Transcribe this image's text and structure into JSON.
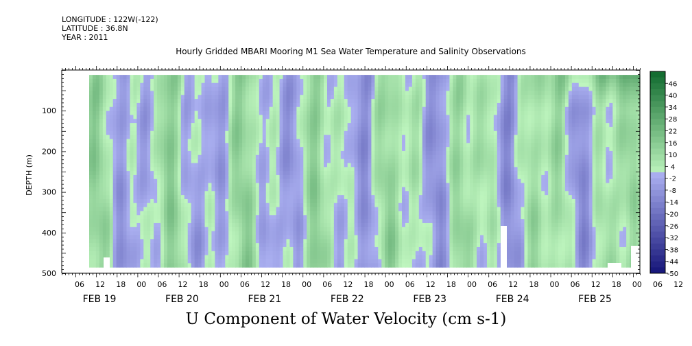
{
  "header": {
    "longitude": "LONGITUDE : 122W(-122)",
    "latitude": "LATITUDE : 36.8N",
    "year": "YEAR : 2011"
  },
  "chart_data": {
    "type": "heatmap",
    "title": "Hourly Gridded MBARI Mooring M1 Sea Water Temperature and Salinity Observations",
    "ylabel": "DEPTH (m)",
    "xlabel": "U Component of Water Velocity (cm s-1)",
    "y_ticks": [
      100,
      200,
      300,
      400,
      500
    ],
    "ylim": [
      500,
      0
    ],
    "x_hour_ticks": [
      "06",
      "12",
      "18",
      "00",
      "06",
      "12",
      "18",
      "00",
      "06",
      "12",
      "18",
      "00",
      "06",
      "12",
      "18",
      "00",
      "06",
      "12",
      "18",
      "00",
      "06",
      "12",
      "18",
      "00",
      "06",
      "12",
      "18",
      "00",
      "06",
      "12",
      "18",
      "00"
    ],
    "x_date_labels": [
      "FEB 19",
      "FEB 20",
      "FEB 21",
      "FEB 22",
      "FEB 23",
      "FEB 24",
      "FEB 25"
    ],
    "colorbar": {
      "levels": [
        46,
        40,
        34,
        28,
        22,
        16,
        10,
        4,
        -2,
        -8,
        -14,
        -20,
        -26,
        -32,
        -38,
        -44,
        -50
      ],
      "range": [
        -50,
        52
      ]
    },
    "colors": {
      "negative": "#a6a8ef",
      "positive": "#3fe070",
      "strong_positive": "#1e7a3a"
    }
  }
}
